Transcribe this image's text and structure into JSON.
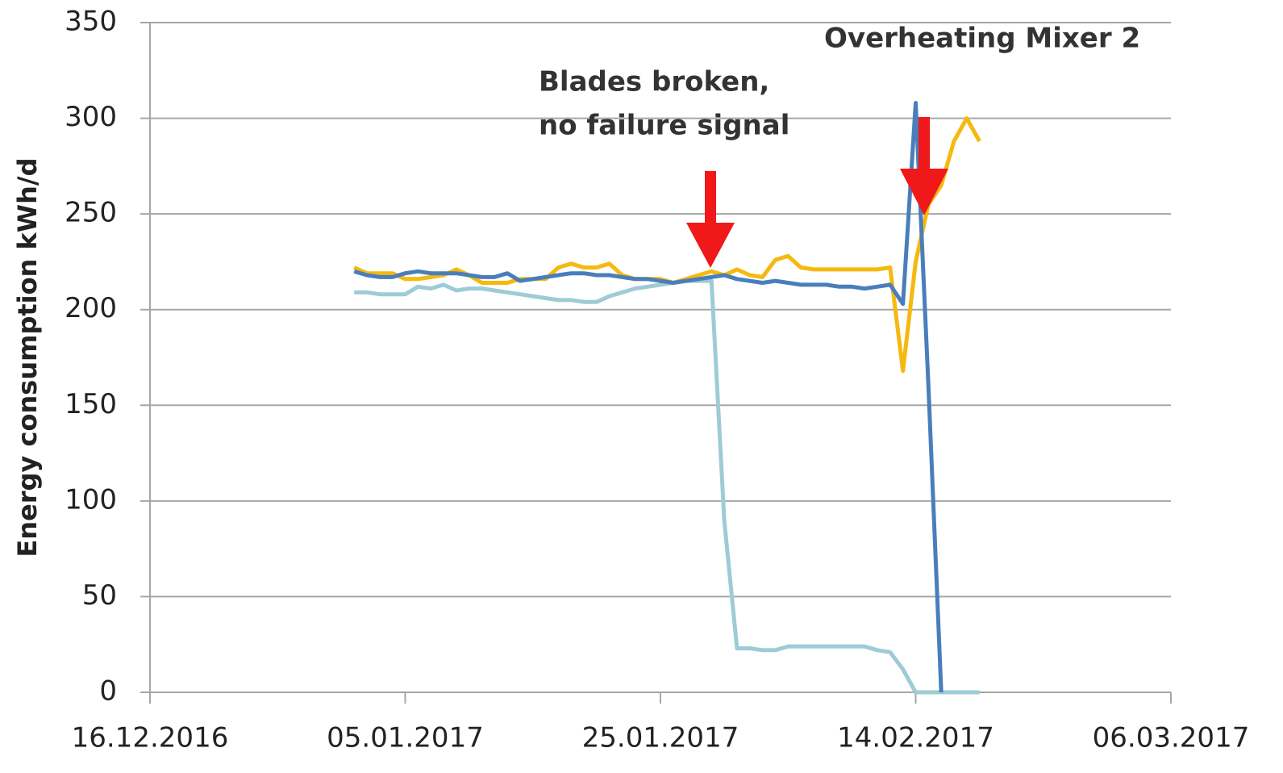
{
  "chart_data": {
    "type": "line",
    "y_label": "Energy consumption kWh/d",
    "annotations": [
      {
        "lines": [
          "Blades broken,",
          "no failure signal"
        ]
      },
      {
        "lines": [
          "Overheating Mixer 2"
        ]
      }
    ],
    "x": [
      "2017-01-01",
      "2017-01-02",
      "2017-01-03",
      "2017-01-04",
      "2017-01-05",
      "2017-01-06",
      "2017-01-07",
      "2017-01-08",
      "2017-01-09",
      "2017-01-10",
      "2017-01-11",
      "2017-01-12",
      "2017-01-13",
      "2017-01-14",
      "2017-01-15",
      "2017-01-16",
      "2017-01-17",
      "2017-01-18",
      "2017-01-19",
      "2017-01-20",
      "2017-01-21",
      "2017-01-22",
      "2017-01-23",
      "2017-01-24",
      "2017-01-25",
      "2017-01-26",
      "2017-01-27",
      "2017-01-28",
      "2017-01-29",
      "2017-01-30",
      "2017-01-31",
      "2017-02-01",
      "2017-02-02",
      "2017-02-03",
      "2017-02-04",
      "2017-02-05",
      "2017-02-06",
      "2017-02-07",
      "2017-02-08",
      "2017-02-09",
      "2017-02-10",
      "2017-02-11",
      "2017-02-12",
      "2017-02-13",
      "2017-02-14",
      "2017-02-15",
      "2017-02-16",
      "2017-02-17",
      "2017-02-18",
      "2017-02-19"
    ],
    "series": [
      {
        "color": "#f5b90f",
        "values": [
          222,
          219,
          219,
          219,
          216,
          216,
          217,
          218,
          221,
          218,
          214,
          214,
          214,
          216,
          216,
          216,
          222,
          224,
          222,
          222,
          224,
          218,
          216,
          216,
          216,
          214,
          216,
          218,
          220,
          218,
          221,
          218,
          217,
          226,
          228,
          222,
          221,
          221,
          221,
          221,
          221,
          221,
          222,
          168,
          225,
          255,
          265,
          288,
          300,
          288
        ]
      },
      {
        "color": "#9ecbd6",
        "values": [
          209,
          209,
          208,
          208,
          208,
          212,
          211,
          213,
          210,
          211,
          211,
          210,
          209,
          208,
          207,
          206,
          205,
          205,
          204,
          204,
          207,
          209,
          211,
          212,
          213,
          214,
          215,
          215,
          215,
          90,
          23,
          23,
          22,
          22,
          24,
          24,
          24,
          24,
          24,
          24,
          24,
          22,
          21,
          12,
          0,
          0,
          0,
          0,
          0,
          0
        ]
      },
      {
        "color": "#4a7ebb",
        "values": [
          220,
          218,
          217,
          217,
          219,
          220,
          219,
          219,
          219,
          218,
          217,
          217,
          219,
          215,
          216,
          217,
          218,
          219,
          219,
          218,
          218,
          217,
          216,
          216,
          215,
          214,
          215,
          216,
          217,
          218,
          216,
          215,
          214,
          215,
          214,
          213,
          213,
          213,
          212,
          212,
          211,
          212,
          213,
          203,
          308,
          160,
          0,
          null,
          null,
          null
        ]
      }
    ],
    "xlim": [
      "2016-12-16",
      "2017-03-06"
    ],
    "xticks": [
      {
        "value": "2016-12-16",
        "label": "16.12.2016"
      },
      {
        "value": "2017-01-05",
        "label": "05.01.2017"
      },
      {
        "value": "2017-01-25",
        "label": "25.01.2017"
      },
      {
        "value": "2017-02-14",
        "label": "14.02.2017"
      },
      {
        "value": "2017-03-06",
        "label": "06.03.2017"
      }
    ],
    "ylim": [
      0,
      350
    ],
    "yticks": [
      0,
      50,
      100,
      150,
      200,
      250,
      300,
      350
    ],
    "grid": true
  }
}
